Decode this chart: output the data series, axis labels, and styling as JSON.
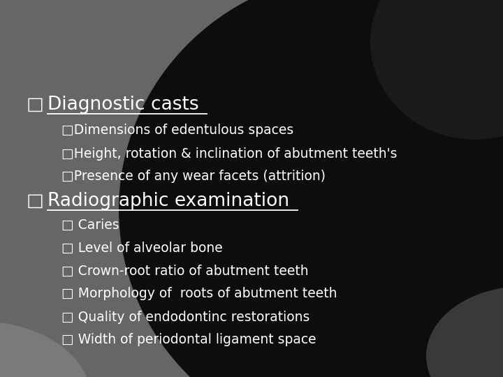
{
  "text_color": "#ffffff",
  "heading1": "Diagnostic casts",
  "heading2": "Radiographic examination",
  "sub1": [
    "□Dimensions of edentulous spaces",
    "□Height, rotation & inclination of abutment teeth's",
    "□Presence of any wear facets (attrition)"
  ],
  "sub2": [
    "□ Caries",
    "□ Level of alveolar bone",
    "□ Crown-root ratio of abutment teeth",
    "□ Morphology of  roots of abutment teeth",
    "□ Quality of endodontinc restorations",
    "□ Width of periodontal ligament space"
  ],
  "bullet_main": "□",
  "bg_main": "#666666",
  "bg_dark": "#0d0d0d",
  "bg_gray_bottom": "#555555",
  "figsize": [
    7.2,
    5.4
  ],
  "dpi": 100
}
